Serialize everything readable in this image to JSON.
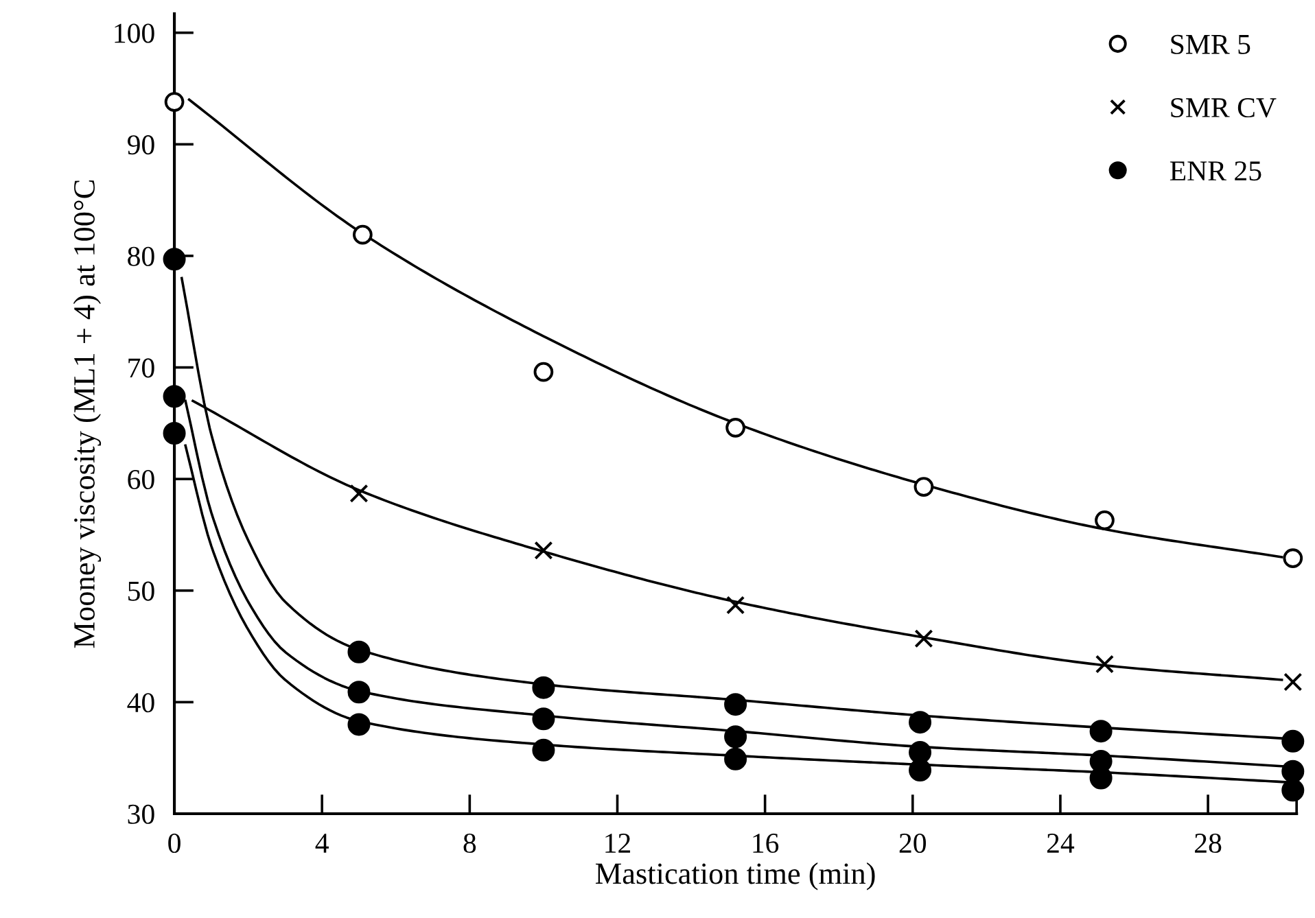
{
  "chart_data": {
    "type": "line",
    "xlabel": "Mastication time (min)",
    "ylabel": "Mooney viscosity (ML1 + 4) at 100°C",
    "xlim": [
      0,
      30.4
    ],
    "xticks": [
      0,
      4,
      8,
      12,
      16,
      20,
      24,
      28,
      {
        "value": 30.4,
        "label": null
      }
    ],
    "ylim": [
      30,
      101.7
    ],
    "yticks": [
      30,
      40,
      50,
      60,
      70,
      80,
      90,
      100
    ],
    "grid": false,
    "legend": "top right",
    "series": [
      {
        "color": "#000000",
        "marker": "none",
        "x": [
          0.4,
          5.1,
          10,
          15.2,
          20.3,
          25.2,
          30
        ],
        "values": [
          94,
          82,
          72.8,
          65,
          59.5,
          55.5,
          53
        ]
      },
      {
        "color": "#000000",
        "marker": "none",
        "x": [
          0.5,
          5,
          10,
          15.2,
          20.3,
          25.2,
          30
        ],
        "values": [
          67,
          59,
          53.5,
          49,
          45.8,
          43.3,
          42
        ]
      },
      {
        "color": "#000000",
        "marker": "none",
        "x": [
          0.2,
          1,
          2,
          3,
          5,
          10,
          15.2,
          20.2,
          25.2,
          30.3
        ],
        "values": [
          78,
          64,
          54.5,
          49,
          44.7,
          41.6,
          40.2,
          38.8,
          37.7,
          36.7
        ]
      },
      {
        "color": "#000000",
        "marker": "none",
        "x": [
          0.3,
          1,
          2,
          3,
          5,
          10,
          15.2,
          20.2,
          25.2,
          30.3
        ],
        "values": [
          67,
          57,
          49,
          44.5,
          41,
          38.8,
          37.4,
          36,
          35.2,
          34.2
        ]
      },
      {
        "color": "#000000",
        "marker": "none",
        "x": [
          0.3,
          1,
          2,
          3,
          5,
          10,
          15.2,
          20.2,
          25.2,
          30.3
        ],
        "values": [
          63,
          54,
          46.5,
          42,
          38.3,
          36.2,
          35.2,
          34.4,
          33.7,
          32.8
        ]
      },
      {
        "type": "scatter",
        "name": "SMR 5",
        "color": "#ffffff",
        "marker": "circle",
        "x": [
          0,
          5.1,
          10,
          15.2,
          20.3,
          25.2,
          30.3
        ],
        "values": [
          93.8,
          81.9,
          69.6,
          64.6,
          59.3,
          56.3,
          52.9
        ]
      },
      {
        "type": "scatter",
        "name": "SMR CV",
        "color": "#000000",
        "marker": "cross",
        "x": [
          5,
          10,
          15.2,
          20.3,
          25.2,
          30.3
        ],
        "values": [
          58.7,
          53.6,
          48.7,
          45.7,
          43.4,
          41.8
        ]
      },
      {
        "type": "scatter",
        "name": "ENR 25",
        "color": "#000000",
        "marker": "circle",
        "x": [
          0,
          0,
          0,
          5,
          5,
          5,
          10,
          10,
          10,
          15.2,
          15.2,
          15.2,
          20.2,
          20.2,
          20.2,
          25.1,
          25.1,
          25.1,
          30.3,
          30.3,
          30.3
        ],
        "values": [
          79.7,
          67.4,
          64.1,
          44.5,
          40.9,
          38.0,
          41.3,
          38.5,
          35.7,
          39.8,
          36.9,
          34.9,
          38.2,
          35.5,
          33.9,
          37.4,
          34.7,
          33.2,
          36.5,
          33.8,
          32.1
        ]
      }
    ]
  }
}
